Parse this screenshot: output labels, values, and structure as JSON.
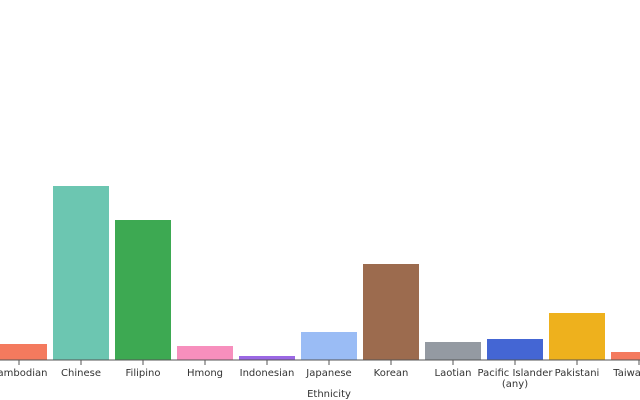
{
  "chart_data": {
    "type": "bar",
    "xlabel": "Ethnicity",
    "categories": [
      {
        "label": "Cambodian",
        "lines": [
          "Cambodian"
        ]
      },
      {
        "label": "Chinese",
        "lines": [
          "Chinese"
        ]
      },
      {
        "label": "Filipino",
        "lines": [
          "Filipino"
        ]
      },
      {
        "label": "Hmong",
        "lines": [
          "Hmong"
        ]
      },
      {
        "label": "Indonesian",
        "lines": [
          "Indonesian"
        ]
      },
      {
        "label": "Japanese",
        "lines": [
          "Japanese"
        ]
      },
      {
        "label": "Korean",
        "lines": [
          "Korean"
        ]
      },
      {
        "label": "Laotian",
        "lines": [
          "Laotian"
        ]
      },
      {
        "label": "Pacific Islander (any)",
        "lines": [
          "Pacific Islander",
          "(any)"
        ]
      },
      {
        "label": "Pakistani",
        "lines": [
          "Pakistani"
        ]
      },
      {
        "label": "Taiwanese",
        "lines": [
          "Taiwanese"
        ]
      }
    ],
    "values": [
      16,
      174,
      140,
      14,
      4,
      28,
      96,
      18,
      21,
      47,
      8
    ],
    "ylim": [
      0,
      360
    ],
    "grid": false,
    "colors": [
      "#f47a5e",
      "#6cc6b1",
      "#3da952",
      "#f78fbd",
      "#9b68e4",
      "#9abcf5",
      "#9c6b4e",
      "#949aa2",
      "#4466d4",
      "#eeb11d",
      "#f47a5e"
    ]
  }
}
